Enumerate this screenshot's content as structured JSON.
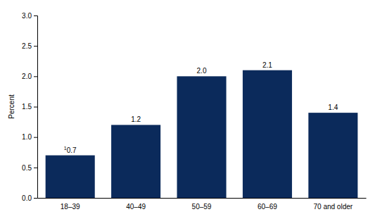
{
  "chart_data": {
    "type": "bar",
    "categories": [
      "18–39",
      "40–49",
      "50–59",
      "60–69",
      "70 and older"
    ],
    "values": [
      0.7,
      1.2,
      2.0,
      2.1,
      1.4
    ],
    "value_labels": [
      "0.7",
      "1.2",
      "2.0",
      "2.1",
      "1.4"
    ],
    "data_labels": true,
    "annotations": [
      {
        "category": "18–39",
        "text": "1"
      }
    ],
    "y_label": "Percent",
    "color": "#0b2a5b",
    "ylim": [
      0,
      3
    ],
    "yticks": [
      {
        "value": 0,
        "label": "0.0"
      },
      0.5,
      {
        "value": 1,
        "label": "1.0"
      },
      1.5,
      {
        "value": 2,
        "label": "2.0"
      },
      2.5,
      {
        "value": 3,
        "label": "3.0"
      }
    ],
    "grid": false
  }
}
